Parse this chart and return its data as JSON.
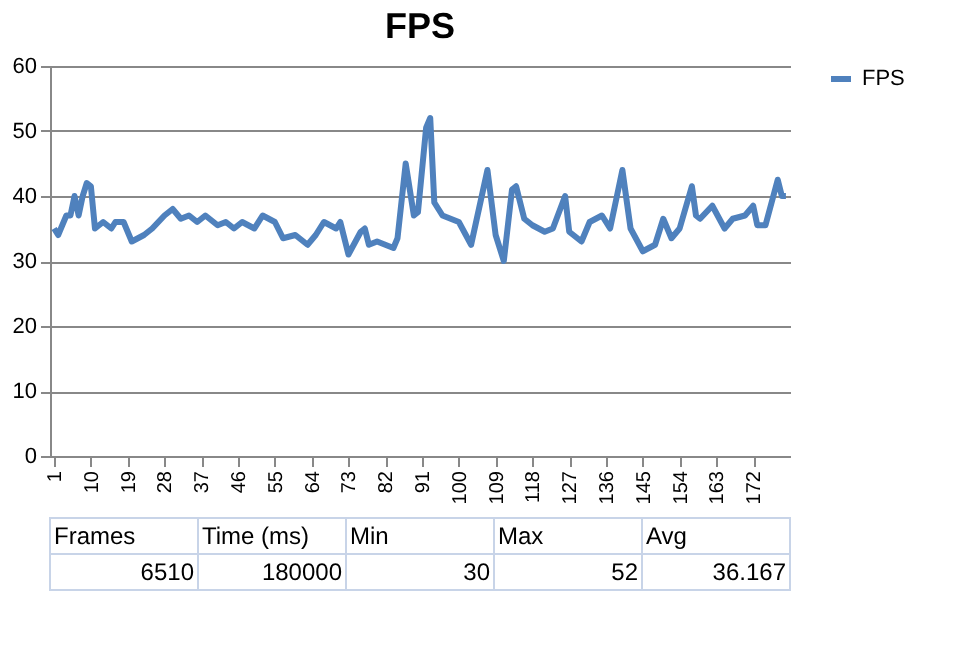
{
  "chart_data": {
    "type": "line",
    "title": "FPS",
    "x": [
      1,
      2,
      4,
      5,
      6,
      7,
      8,
      9,
      10,
      11,
      13,
      15,
      16,
      18,
      20,
      23,
      25,
      28,
      30,
      32,
      34,
      36,
      38,
      41,
      43,
      45,
      47,
      50,
      52,
      55,
      57,
      60,
      63,
      65,
      67,
      70,
      71,
      73,
      76,
      77,
      78,
      80,
      82,
      84,
      85,
      87,
      89,
      90,
      92,
      93,
      94,
      96,
      100,
      103,
      107,
      109,
      111,
      113,
      114,
      116,
      118,
      121,
      123,
      126,
      127,
      130,
      132,
      135,
      137,
      140,
      142,
      145,
      148,
      150,
      152,
      154,
      157,
      158,
      159,
      162,
      165,
      167,
      170,
      172,
      173,
      175,
      178,
      179,
      180
    ],
    "series": [
      {
        "name": "FPS",
        "color": "#4f81bd",
        "values": [
          35,
          34,
          37,
          37,
          40,
          37,
          40,
          42,
          41.5,
          35,
          36,
          35,
          36,
          36,
          33,
          34,
          35,
          37,
          38,
          36.5,
          37,
          36,
          37,
          35.5,
          36,
          35,
          36,
          35,
          37,
          36,
          33.5,
          34,
          32.5,
          34,
          36,
          35,
          36,
          31,
          34.5,
          35,
          32.5,
          33,
          32.5,
          32,
          33.5,
          45,
          37,
          37.5,
          50.5,
          52,
          39,
          37,
          36,
          32.5,
          44,
          34,
          30,
          41,
          41.5,
          36.5,
          35.5,
          34.5,
          35,
          40,
          34.5,
          33,
          36,
          37,
          35,
          44,
          35,
          31.5,
          32.5,
          36.5,
          33.5,
          35,
          41.5,
          37,
          36.5,
          38.5,
          35,
          36.5,
          37,
          38.5,
          35.5,
          35.5,
          42.5,
          40,
          40
        ]
      }
    ],
    "xlim": [
      0,
      181
    ],
    "xticks": [
      1,
      10,
      19,
      28,
      37,
      46,
      55,
      64,
      73,
      82,
      91,
      100,
      109,
      118,
      127,
      136,
      145,
      154,
      163,
      172
    ],
    "ylim": [
      0,
      60
    ],
    "yticks": [
      0,
      10,
      20,
      30,
      40,
      50,
      60
    ],
    "grid": "y",
    "legend": "right",
    "marker": "none",
    "line_style": "solid",
    "annotations": [
      "Frames",
      "Time (ms)",
      "Min",
      "Max",
      "Avg",
      "6510",
      "180000",
      "30",
      "52",
      "36.167"
    ]
  }
}
